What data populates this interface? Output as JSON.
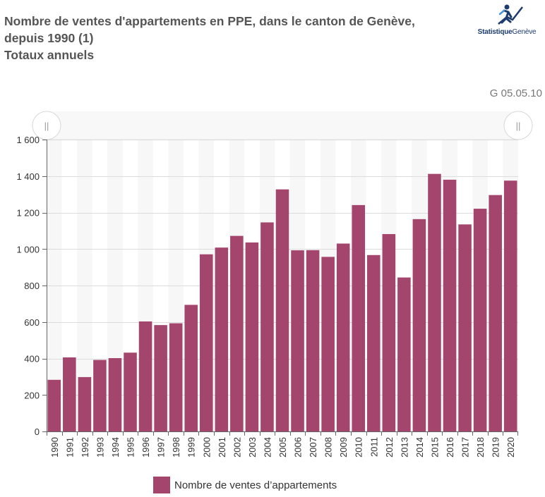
{
  "header": {
    "title_lines": [
      "Nombre de ventes d'appartements en PPE, dans le canton de Genève,",
      "depuis 1990 (1)",
      "Totaux annuels"
    ],
    "code": "G 05.05.10"
  },
  "logo": {
    "text_bold": "Statistique",
    "text_light": "Genève",
    "icon": "running-figure-chart-icon"
  },
  "navigator": {
    "left_handle_label": "||",
    "right_handle_label": "||"
  },
  "chart_data": {
    "type": "bar",
    "title": "Nombre de ventes d'appartements en PPE, dans le canton de Genève, depuis 1990 (1)",
    "subtitle": "Totaux annuels",
    "xlabel": "",
    "ylabel": "",
    "ylim": [
      0,
      1600
    ],
    "yticks": [
      0,
      200,
      400,
      600,
      800,
      1000,
      1200,
      1400,
      1600
    ],
    "ytick_labels": [
      "0",
      "200",
      "400",
      "600",
      "800",
      "1 000",
      "1 200",
      "1 400",
      "1 600"
    ],
    "grid": true,
    "legend_position": "bottom",
    "color": "#a4456e",
    "categories": [
      "1990",
      "1991",
      "1992",
      "1993",
      "1994",
      "1995",
      "1996",
      "1997",
      "1998",
      "1999",
      "2000",
      "2001",
      "2002",
      "2003",
      "2004",
      "2005",
      "2006",
      "2007",
      "2008",
      "2009",
      "2010",
      "2011",
      "2012",
      "2013",
      "2014",
      "2015",
      "2016",
      "2017",
      "2018",
      "2019",
      "2020"
    ],
    "series": [
      {
        "name": "Nombre de ventes d’appartements",
        "values": [
          283,
          406,
          298,
          392,
          402,
          432,
          603,
          583,
          593,
          694,
          971,
          1008,
          1072,
          1036,
          1146,
          1327,
          993,
          994,
          957,
          1030,
          1241,
          967,
          1082,
          844,
          1164,
          1412,
          1380,
          1135,
          1221,
          1296,
          1375
        ]
      }
    ]
  }
}
